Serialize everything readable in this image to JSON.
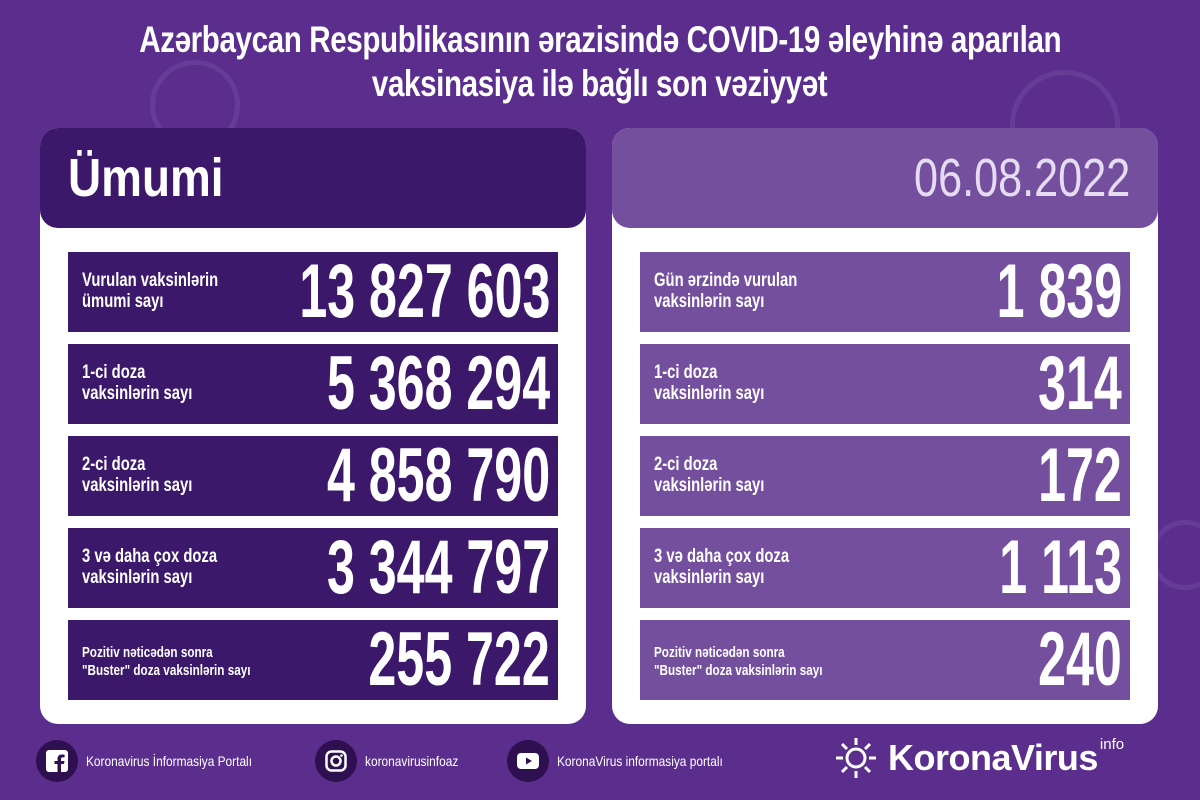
{
  "title": {
    "line1": "Azərbaycan Respublikasının ərazisində COVID-19 əleyhinə aparılan",
    "line2": "vaksinasiya ilə bağlı son vəziyyət"
  },
  "left": {
    "header": "Ümumi",
    "rows": [
      {
        "label": "Vurulan vaksinlərin\nümumi sayı",
        "value": "13 827 603"
      },
      {
        "label": "1-ci doza\nvaksinlərin sayı",
        "value": "5 368 294"
      },
      {
        "label": "2-ci doza\nvaksinlərin sayı",
        "value": "4 858 790"
      },
      {
        "label": "3 və daha çox doza\nvaksinlərin sayı",
        "value": "3 344 797"
      },
      {
        "label": "Pozitiv nəticədən sonra\n\"Buster\" doza vaksinlərin sayı",
        "value": "255 722"
      }
    ]
  },
  "right": {
    "header": "06.08.2022",
    "rows": [
      {
        "label": "Gün ərzində vurulan\nvaksinlərin sayı",
        "value": "1 839"
      },
      {
        "label": "1-ci doza\nvaksinlərin sayı",
        "value": "314"
      },
      {
        "label": "2-ci doza\nvaksinlərin sayı",
        "value": "172"
      },
      {
        "label": "3 və daha çox doza\nvaksinlərin sayı",
        "value": "1 113"
      },
      {
        "label": "Pozitiv nəticədən sonra\n\"Buster\" doza vaksinlərin sayı",
        "value": "240"
      }
    ]
  },
  "footer": {
    "facebook": "Koronavirus İnformasiya Portalı",
    "instagram": "koronavirusinfoaz",
    "youtube": "KoronaVirus informasiya portalı"
  },
  "logo": {
    "word": "KoronaVirus",
    "sup": "info"
  },
  "colors": {
    "background": "#5b2e8e",
    "left_rows": "#3b1869",
    "right_rows": "#744f9e"
  }
}
